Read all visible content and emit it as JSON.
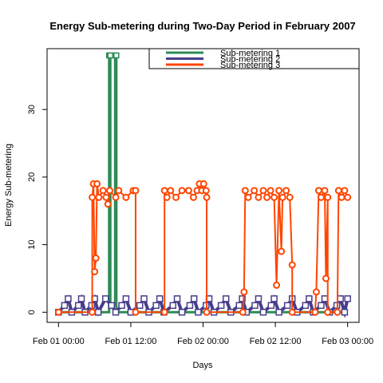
{
  "chart_data": {
    "type": "line",
    "title": "Energy Sub-metering during Two-Day Period in February 2007",
    "xlabel": "Days",
    "ylabel": "Energy Sub-metering",
    "x_ticks": [
      "Feb 01 00:00",
      "Feb 01 12:00",
      "Feb 02 00:00",
      "Feb 02 12:00",
      "Feb 03 00:00"
    ],
    "x_tick_hours": [
      0,
      12,
      24,
      36,
      48
    ],
    "xlim_hours": [
      -1.9,
      49.9
    ],
    "y_ticks": [
      0,
      10,
      20,
      30
    ],
    "ylim": [
      -1.5,
      39
    ],
    "grid": false,
    "legend": "top-right",
    "series": [
      {
        "name": "Sub-metering 1",
        "color": "#2e8b57",
        "style": "line-bold",
        "points": [
          [
            0,
            0
          ],
          [
            8.4,
            0
          ],
          [
            8.4,
            38
          ],
          [
            8.6,
            38
          ],
          [
            8.6,
            1
          ],
          [
            9.4,
            1
          ],
          [
            9.4,
            38
          ],
          [
            9.6,
            38
          ],
          [
            9.6,
            0
          ],
          [
            48,
            0
          ]
        ]
      },
      {
        "name": "Sub-metering 2",
        "color": "#483d8b",
        "style": "squares",
        "points": [
          [
            0,
            0
          ],
          [
            1,
            1
          ],
          [
            1.6,
            2
          ],
          [
            2.2,
            0
          ],
          [
            3.3,
            1
          ],
          [
            3.8,
            2
          ],
          [
            4.4,
            0
          ],
          [
            5.5,
            1
          ],
          [
            6,
            2
          ],
          [
            6.6,
            0
          ],
          [
            7.8,
            2
          ],
          [
            8.8,
            1
          ],
          [
            9.5,
            0
          ],
          [
            10.5,
            1
          ],
          [
            11.2,
            2
          ],
          [
            12,
            0
          ],
          [
            13.5,
            1
          ],
          [
            14.2,
            2
          ],
          [
            15,
            0
          ],
          [
            16.2,
            1
          ],
          [
            16.8,
            2
          ],
          [
            17.5,
            0
          ],
          [
            19,
            1
          ],
          [
            19.7,
            2
          ],
          [
            20.5,
            0
          ],
          [
            21.8,
            1
          ],
          [
            22.5,
            2
          ],
          [
            23.2,
            0
          ],
          [
            24.5,
            1
          ],
          [
            25,
            2
          ],
          [
            25.8,
            0
          ],
          [
            27,
            1
          ],
          [
            27.8,
            2
          ],
          [
            28.6,
            0
          ],
          [
            30,
            1
          ],
          [
            30.5,
            2
          ],
          [
            31.2,
            0
          ],
          [
            32.6,
            1
          ],
          [
            33.2,
            2
          ],
          [
            34,
            0
          ],
          [
            35.3,
            1
          ],
          [
            35.8,
            2
          ],
          [
            36.6,
            0
          ],
          [
            38,
            1
          ],
          [
            38.8,
            2
          ],
          [
            39.6,
            0
          ],
          [
            41,
            1
          ],
          [
            41.6,
            2
          ],
          [
            42.3,
            0
          ],
          [
            43.6,
            1
          ],
          [
            44.2,
            2
          ],
          [
            45,
            0
          ],
          [
            46.2,
            1
          ],
          [
            46.8,
            2
          ],
          [
            47.5,
            0
          ],
          [
            48,
            2
          ]
        ]
      },
      {
        "name": "Sub-metering 3",
        "color": "#ff4500",
        "style": "line-circles",
        "points": [
          [
            0,
            0
          ],
          [
            5.6,
            0
          ],
          [
            5.6,
            17
          ],
          [
            5.8,
            19
          ],
          [
            6,
            6
          ],
          [
            6.2,
            8
          ],
          [
            6.4,
            19
          ],
          [
            6.7,
            17
          ],
          [
            7.4,
            18
          ],
          [
            7.9,
            17
          ],
          [
            8.2,
            16
          ],
          [
            8.5,
            18
          ],
          [
            9.5,
            17
          ],
          [
            10,
            18
          ],
          [
            11.2,
            17
          ],
          [
            12.4,
            18
          ],
          [
            12.8,
            18
          ],
          [
            12.8,
            0
          ],
          [
            17.6,
            0
          ],
          [
            17.6,
            18
          ],
          [
            18,
            17
          ],
          [
            18.6,
            18
          ],
          [
            19.5,
            17
          ],
          [
            20.5,
            18
          ],
          [
            21.6,
            18
          ],
          [
            22.4,
            17
          ],
          [
            23,
            18
          ],
          [
            23.4,
            19
          ],
          [
            23.8,
            18
          ],
          [
            24.1,
            19
          ],
          [
            24.5,
            18
          ],
          [
            24.6,
            17
          ],
          [
            24.6,
            0
          ],
          [
            30.6,
            0
          ],
          [
            30.8,
            3
          ],
          [
            31,
            18
          ],
          [
            31.5,
            17
          ],
          [
            32.5,
            18
          ],
          [
            33.2,
            17
          ],
          [
            34,
            18
          ],
          [
            34.6,
            17
          ],
          [
            35.2,
            18
          ],
          [
            35.8,
            17
          ],
          [
            36.2,
            4
          ],
          [
            36.6,
            18
          ],
          [
            37,
            9
          ],
          [
            37.2,
            17
          ],
          [
            37.8,
            18
          ],
          [
            38.4,
            17
          ],
          [
            38.8,
            7
          ],
          [
            38.8,
            0
          ],
          [
            42.6,
            0
          ],
          [
            42.8,
            3
          ],
          [
            43.2,
            18
          ],
          [
            43.6,
            17
          ],
          [
            44.2,
            18
          ],
          [
            44.4,
            5
          ],
          [
            44.7,
            17
          ],
          [
            44.7,
            0
          ],
          [
            46.3,
            0
          ],
          [
            46.5,
            18
          ],
          [
            47,
            17
          ],
          [
            47.5,
            18
          ],
          [
            48,
            17
          ]
        ]
      }
    ]
  }
}
